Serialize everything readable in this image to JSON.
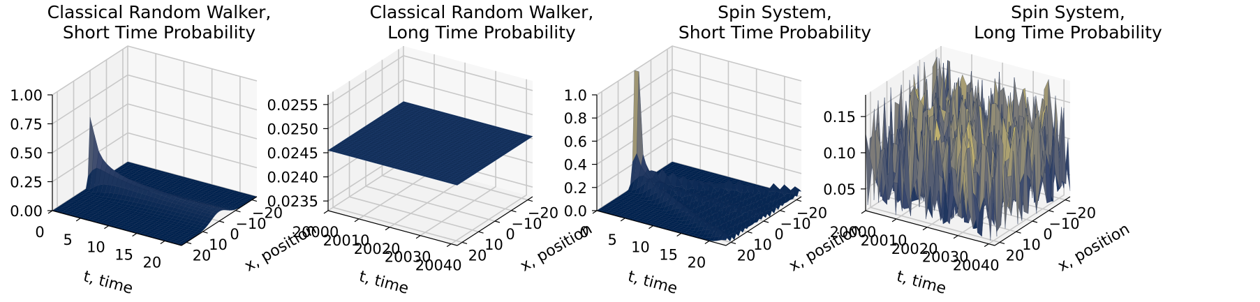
{
  "chart_data": [
    {
      "type": "surface3d",
      "title": "Classical Random Walker,\nShort Time Probability",
      "xlabel": "t, time",
      "ylabel": "x, position",
      "zlabel": "",
      "t_range": [
        0,
        23
      ],
      "x_range": [
        -23,
        23
      ],
      "z_range": [
        0,
        1.0
      ],
      "t_ticks": [
        "0",
        "5",
        "10",
        "15",
        "20"
      ],
      "t_tick_values": [
        0,
        5,
        10,
        15,
        20
      ],
      "x_ticks": [
        "20",
        "10",
        "0",
        "−10",
        "−20"
      ],
      "x_tick_values": [
        20,
        10,
        0,
        -10,
        -20
      ],
      "z_ticks": [
        "0.00",
        "0.25",
        "0.50",
        "0.75",
        "1.00"
      ],
      "z_tick_values": [
        0,
        0.25,
        0.5,
        0.75,
        1.0
      ],
      "surface": "classical_short",
      "colormap": "cividis"
    },
    {
      "type": "surface3d",
      "title": "Classical Random Walker,\nLong Time Probability",
      "xlabel": "t, time",
      "ylabel": "x, position",
      "zlabel": "",
      "t_range": [
        20000,
        20042
      ],
      "x_range": [
        -23,
        23
      ],
      "z_range": [
        0.0233,
        0.0257
      ],
      "t_ticks": [
        "20000",
        "20010",
        "20020",
        "20030",
        "20040"
      ],
      "t_tick_values": [
        20000,
        20010,
        20020,
        20030,
        20040
      ],
      "x_ticks": [
        "20",
        "10",
        "0",
        "−10",
        "−20"
      ],
      "x_tick_values": [
        20,
        10,
        0,
        -10,
        -20
      ],
      "z_ticks": [
        "0.0235",
        "0.0240",
        "0.0245",
        "0.0250",
        "0.0255"
      ],
      "z_tick_values": [
        0.0235,
        0.024,
        0.0245,
        0.025,
        0.0255
      ],
      "surface": "classical_long",
      "colormap": "cividis"
    },
    {
      "type": "surface3d",
      "title": "Spin System,\nShort Time Probability",
      "xlabel": "t, time",
      "ylabel": "x, position",
      "zlabel": "",
      "t_range": [
        0,
        23
      ],
      "x_range": [
        -23,
        23
      ],
      "z_range": [
        0,
        1.0
      ],
      "t_ticks": [
        "0",
        "5",
        "10",
        "15",
        "20"
      ],
      "t_tick_values": [
        0,
        5,
        10,
        15,
        20
      ],
      "x_ticks": [
        "20",
        "10",
        "0",
        "−10",
        "−20"
      ],
      "x_tick_values": [
        20,
        10,
        0,
        -10,
        -20
      ],
      "z_ticks": [
        "0.0",
        "0.2",
        "0.4",
        "0.6",
        "0.8",
        "1.0"
      ],
      "z_tick_values": [
        0,
        0.2,
        0.4,
        0.6,
        0.8,
        1.0
      ],
      "surface": "spin_short",
      "colormap": "cividis"
    },
    {
      "type": "surface3d",
      "title": "Spin System,\nLong Time Probability",
      "xlabel": "t, time",
      "ylabel": "x, position",
      "zlabel": "",
      "t_range": [
        20000,
        20042
      ],
      "x_range": [
        -23,
        23
      ],
      "z_range": [
        0.02,
        0.18
      ],
      "t_ticks": [
        "20000",
        "20010",
        "20020",
        "20030",
        "20040"
      ],
      "t_tick_values": [
        20000,
        20010,
        20020,
        20030,
        20040
      ],
      "x_ticks": [
        "20",
        "10",
        "0",
        "−10",
        "−20"
      ],
      "x_tick_values": [
        20,
        10,
        0,
        -10,
        -20
      ],
      "z_ticks": [
        "0.05",
        "0.10",
        "0.15"
      ],
      "z_tick_values": [
        0.05,
        0.1,
        0.15
      ],
      "surface": "spin_long",
      "colormap": "cividis"
    }
  ]
}
